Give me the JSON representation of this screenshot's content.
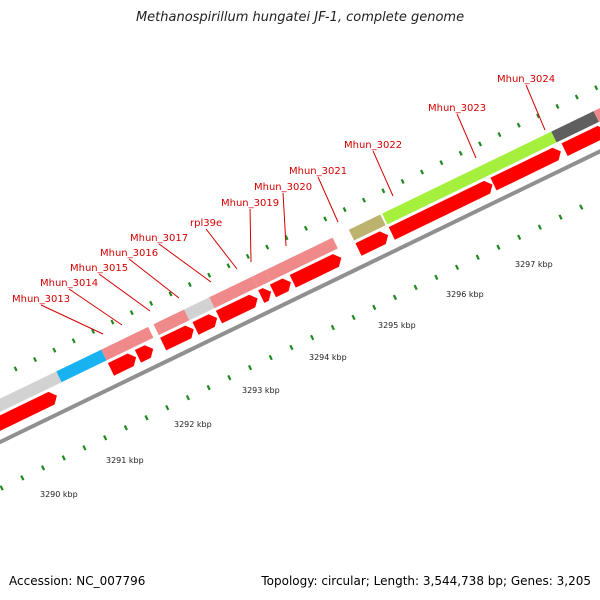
{
  "title": "Methanospirillum hungatei JF-1, complete genome",
  "footer": {
    "accession": "Accession: NC_007796",
    "summary": "Topology: circular; Length: 3,544,738 bp; Genes: 3,205"
  },
  "colors": {
    "cds": "#ff0000",
    "gene_default": "#f08a8a",
    "gene_light": "#d2d2d2",
    "gene_blue": "#19b2f0",
    "gene_green": "#a4f03c",
    "gene_olive": "#bdb26e",
    "gene_dark": "#5f5f5f",
    "label": "#d40000",
    "ticks": "#1f8a1f",
    "backbone": "#909090"
  },
  "kbp_labels": [
    "3290 kbp",
    "3291 kbp",
    "3292 kbp",
    "3293 kbp",
    "3294 kbp",
    "3295 kbp",
    "3296 kbp",
    "3297 kbp"
  ],
  "gene_labels": [
    "Mhun_3013",
    "Mhun_3014",
    "Mhun_3015",
    "Mhun_3016",
    "Mhun_3017",
    "rpl39e",
    "Mhun_3019",
    "Mhun_3020",
    "Mhun_3021",
    "Mhun_3022",
    "Mhun_3023",
    "Mhun_3024"
  ]
}
